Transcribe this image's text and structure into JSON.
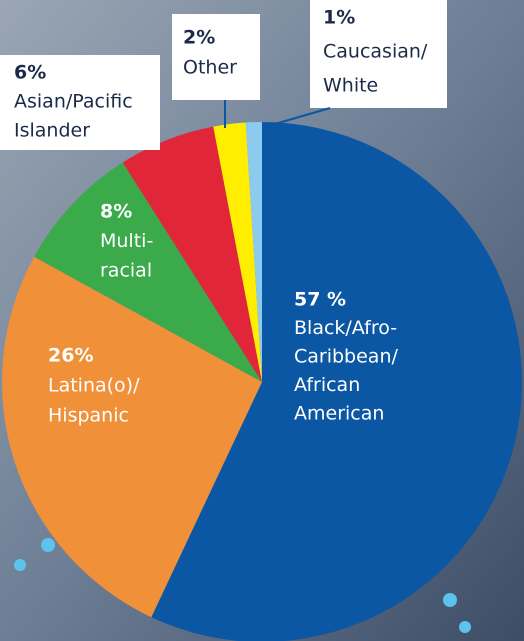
{
  "chart_data": {
    "type": "pie",
    "categories": [
      [
        "Black/Afro-",
        "Caribbean/",
        "African",
        "American"
      ],
      [
        "Latina(o)/",
        "Hispanic"
      ],
      [
        "Multi-",
        "racial"
      ],
      [
        "Asian/Pacific",
        "Islander"
      ],
      [
        "Other"
      ],
      [
        "Caucasian/",
        "White"
      ]
    ],
    "values": [
      57,
      26,
      8,
      6,
      2,
      1
    ],
    "value_labels": [
      "57 %",
      "26%",
      "8%",
      "6%",
      "2%",
      "1%"
    ],
    "colors": [
      "#0b57a4",
      "#f0913a",
      "#3aaa4a",
      "#e2263a",
      "#ffee00",
      "#8ccbef"
    ]
  }
}
